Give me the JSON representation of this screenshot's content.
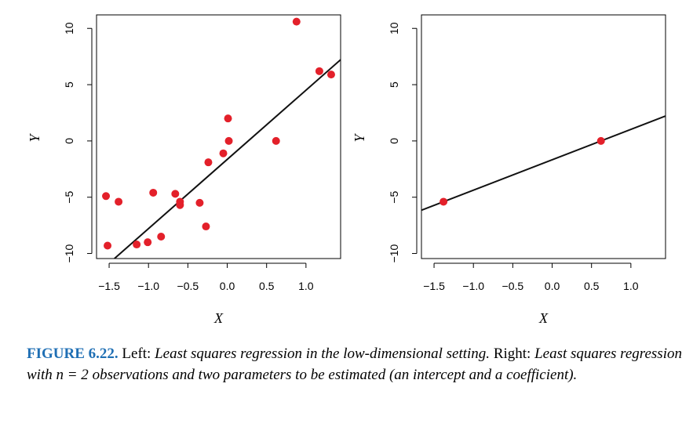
{
  "chart_data": [
    {
      "type": "scatter",
      "panel": "left",
      "xlabel": "X",
      "ylabel": "Y",
      "xlim": [
        -1.66,
        1.44
      ],
      "ylim": [
        -10.45,
        11.2
      ],
      "xticks": [
        -1.5,
        -1.0,
        -0.5,
        0.0,
        0.5,
        1.0
      ],
      "xtick_labels": [
        "−1.5",
        "−1.0",
        "−0.5",
        "0.0",
        "0.5",
        "1.0"
      ],
      "yticks": [
        -10,
        -5,
        0,
        5,
        10
      ],
      "ytick_labels": [
        "−10",
        "−5",
        "0",
        "5",
        "10"
      ],
      "point_color": "#e3202a",
      "points": [
        {
          "x": -1.54,
          "y": -4.9
        },
        {
          "x": -1.52,
          "y": -9.3
        },
        {
          "x": -1.38,
          "y": -5.4
        },
        {
          "x": -1.15,
          "y": -9.2
        },
        {
          "x": -1.01,
          "y": -9.0
        },
        {
          "x": -0.94,
          "y": -4.6
        },
        {
          "x": -0.84,
          "y": -8.5
        },
        {
          "x": -0.66,
          "y": -4.7
        },
        {
          "x": -0.6,
          "y": -5.4
        },
        {
          "x": -0.6,
          "y": -5.7
        },
        {
          "x": -0.35,
          "y": -5.5
        },
        {
          "x": -0.27,
          "y": -7.6
        },
        {
          "x": -0.24,
          "y": -1.9
        },
        {
          "x": -0.05,
          "y": -1.1
        },
        {
          "x": 0.01,
          "y": 2.0
        },
        {
          "x": 0.02,
          "y": 0.0
        },
        {
          "x": 0.62,
          "y": 0.0
        },
        {
          "x": 0.88,
          "y": 10.6
        },
        {
          "x": 1.17,
          "y": 6.2
        },
        {
          "x": 1.32,
          "y": 5.9
        }
      ],
      "fit_line": {
        "intercept": -1.64,
        "slope": 6.15
      }
    },
    {
      "type": "scatter",
      "panel": "right",
      "xlabel": "X",
      "ylabel": "Y",
      "xlim": [
        -1.66,
        1.44
      ],
      "ylim": [
        -10.45,
        11.2
      ],
      "xticks": [
        -1.5,
        -1.0,
        -0.5,
        0.0,
        0.5,
        1.0
      ],
      "xtick_labels": [
        "−1.5",
        "−1.0",
        "−0.5",
        "0.0",
        "0.5",
        "1.0"
      ],
      "yticks": [
        -10,
        -5,
        0,
        5,
        10
      ],
      "ytick_labels": [
        "−10",
        "−5",
        "0",
        "5",
        "10"
      ],
      "point_color": "#e3202a",
      "points": [
        {
          "x": -1.38,
          "y": -5.4
        },
        {
          "x": 0.62,
          "y": 0.0
        }
      ],
      "fit_line": {
        "intercept": -1.674,
        "slope": 2.7
      }
    }
  ],
  "caption": {
    "label": "FIGURE 6.22.",
    "left_word": "Left:",
    "left_text": "Least squares regression in the low-dimensional setting.",
    "right_word": "Right:",
    "right_text_1": "Least squares regression with",
    "n_equation": "n = 2",
    "right_text_2": "observations and two parameters to be estimated (an intercept and a coefficient)."
  }
}
